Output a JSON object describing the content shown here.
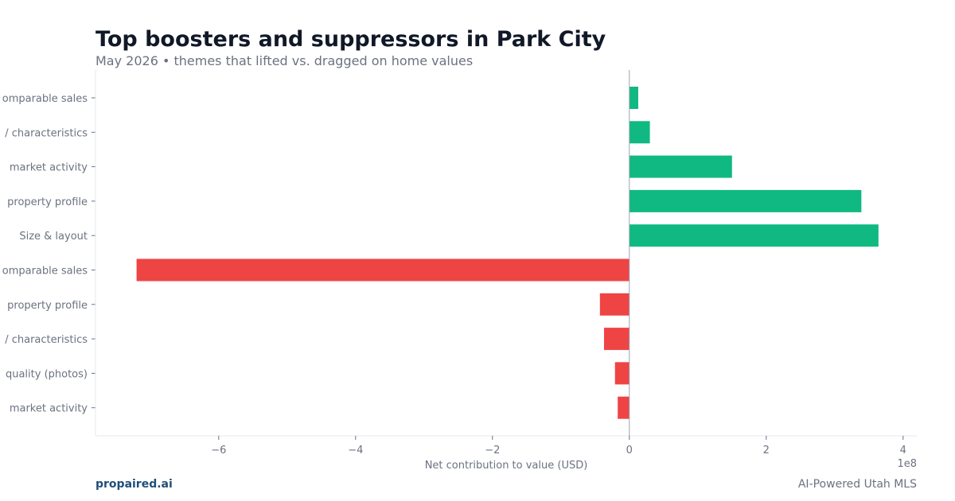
{
  "header": {
    "title": "Top boosters and suppressors in Park City",
    "subtitle": "May 2026 • themes that lifted vs. dragged on home values"
  },
  "footer": {
    "brand": "propaired.ai",
    "tagline": "AI-Powered Utah MLS"
  },
  "colors": {
    "positive": "#10b981",
    "negative": "#ef4444",
    "axis_text": "#6b7280",
    "zero_line": "#9ca3af"
  },
  "chart_data": {
    "type": "bar",
    "orientation": "horizontal",
    "categories": [
      "Comparable sales",
      "Property characteristics",
      "Local market activity",
      "Home & property profile",
      "Size & layout",
      "Comparable sales",
      "Home & property profile",
      "Property characteristics",
      "Listing quality (photos)",
      "Local market activity"
    ],
    "category_labels_visible": [
      "omparable sales",
      "/ characteristics",
      "market activity",
      "property profile",
      "Size & layout",
      "omparable sales",
      "property profile",
      "/ characteristics",
      "quality (photos)",
      "market activity"
    ],
    "values": [
      13000000,
      30000000,
      150000000,
      339000000,
      364000000,
      -720000000,
      -43000000,
      -37000000,
      -21000000,
      -17000000
    ],
    "xlabel": "Net contribution to value (USD)",
    "ylabel": "",
    "xlim": [
      -780000000,
      420000000
    ],
    "xticks": [
      -600000000,
      -400000000,
      -200000000,
      0,
      200000000,
      400000000
    ],
    "xtick_labels": [
      "−6",
      "−4",
      "−2",
      "0",
      "2",
      "4"
    ],
    "offset_label": "1e8",
    "grid": false
  }
}
